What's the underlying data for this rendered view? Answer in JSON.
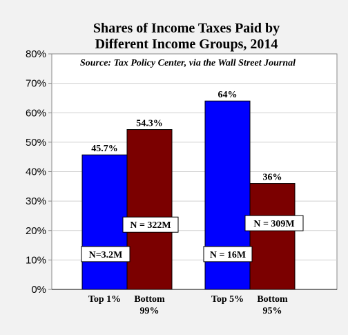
{
  "chart_data": {
    "type": "bar",
    "title_lines": [
      "Shares of Income Taxes Paid by",
      "Different Income Groups, 2014"
    ],
    "source": "Source: Tax Policy Center, via the Wall Street Journal",
    "ylim": [
      0,
      80
    ],
    "yticks": [
      0,
      10,
      20,
      30,
      40,
      50,
      60,
      70,
      80
    ],
    "ytick_labels": [
      "0%",
      "10%",
      "20%",
      "30%",
      "40%",
      "50%",
      "60%",
      "70%",
      "80%"
    ],
    "grid": true,
    "bars": [
      {
        "category_lines": [
          "Top 1%"
        ],
        "value": 45.7,
        "value_label": "45.7%",
        "n_label": "N=3.2M",
        "n_level": 12,
        "color": "#0000ff"
      },
      {
        "category_lines": [
          "Bottom",
          "99%"
        ],
        "value": 54.3,
        "value_label": "54.3%",
        "n_label": "N = 322M",
        "n_level": 22,
        "color": "#7b0000"
      },
      {
        "category_lines": [
          "Top 5%"
        ],
        "value": 64,
        "value_label": "64%",
        "n_label": "N = 16M",
        "n_level": 12,
        "color": "#0000ff"
      },
      {
        "category_lines": [
          "Bottom",
          "95%"
        ],
        "value": 36,
        "value_label": "36%",
        "n_label": "N = 309M",
        "n_level": 22.5,
        "color": "#7b0000"
      }
    ]
  }
}
